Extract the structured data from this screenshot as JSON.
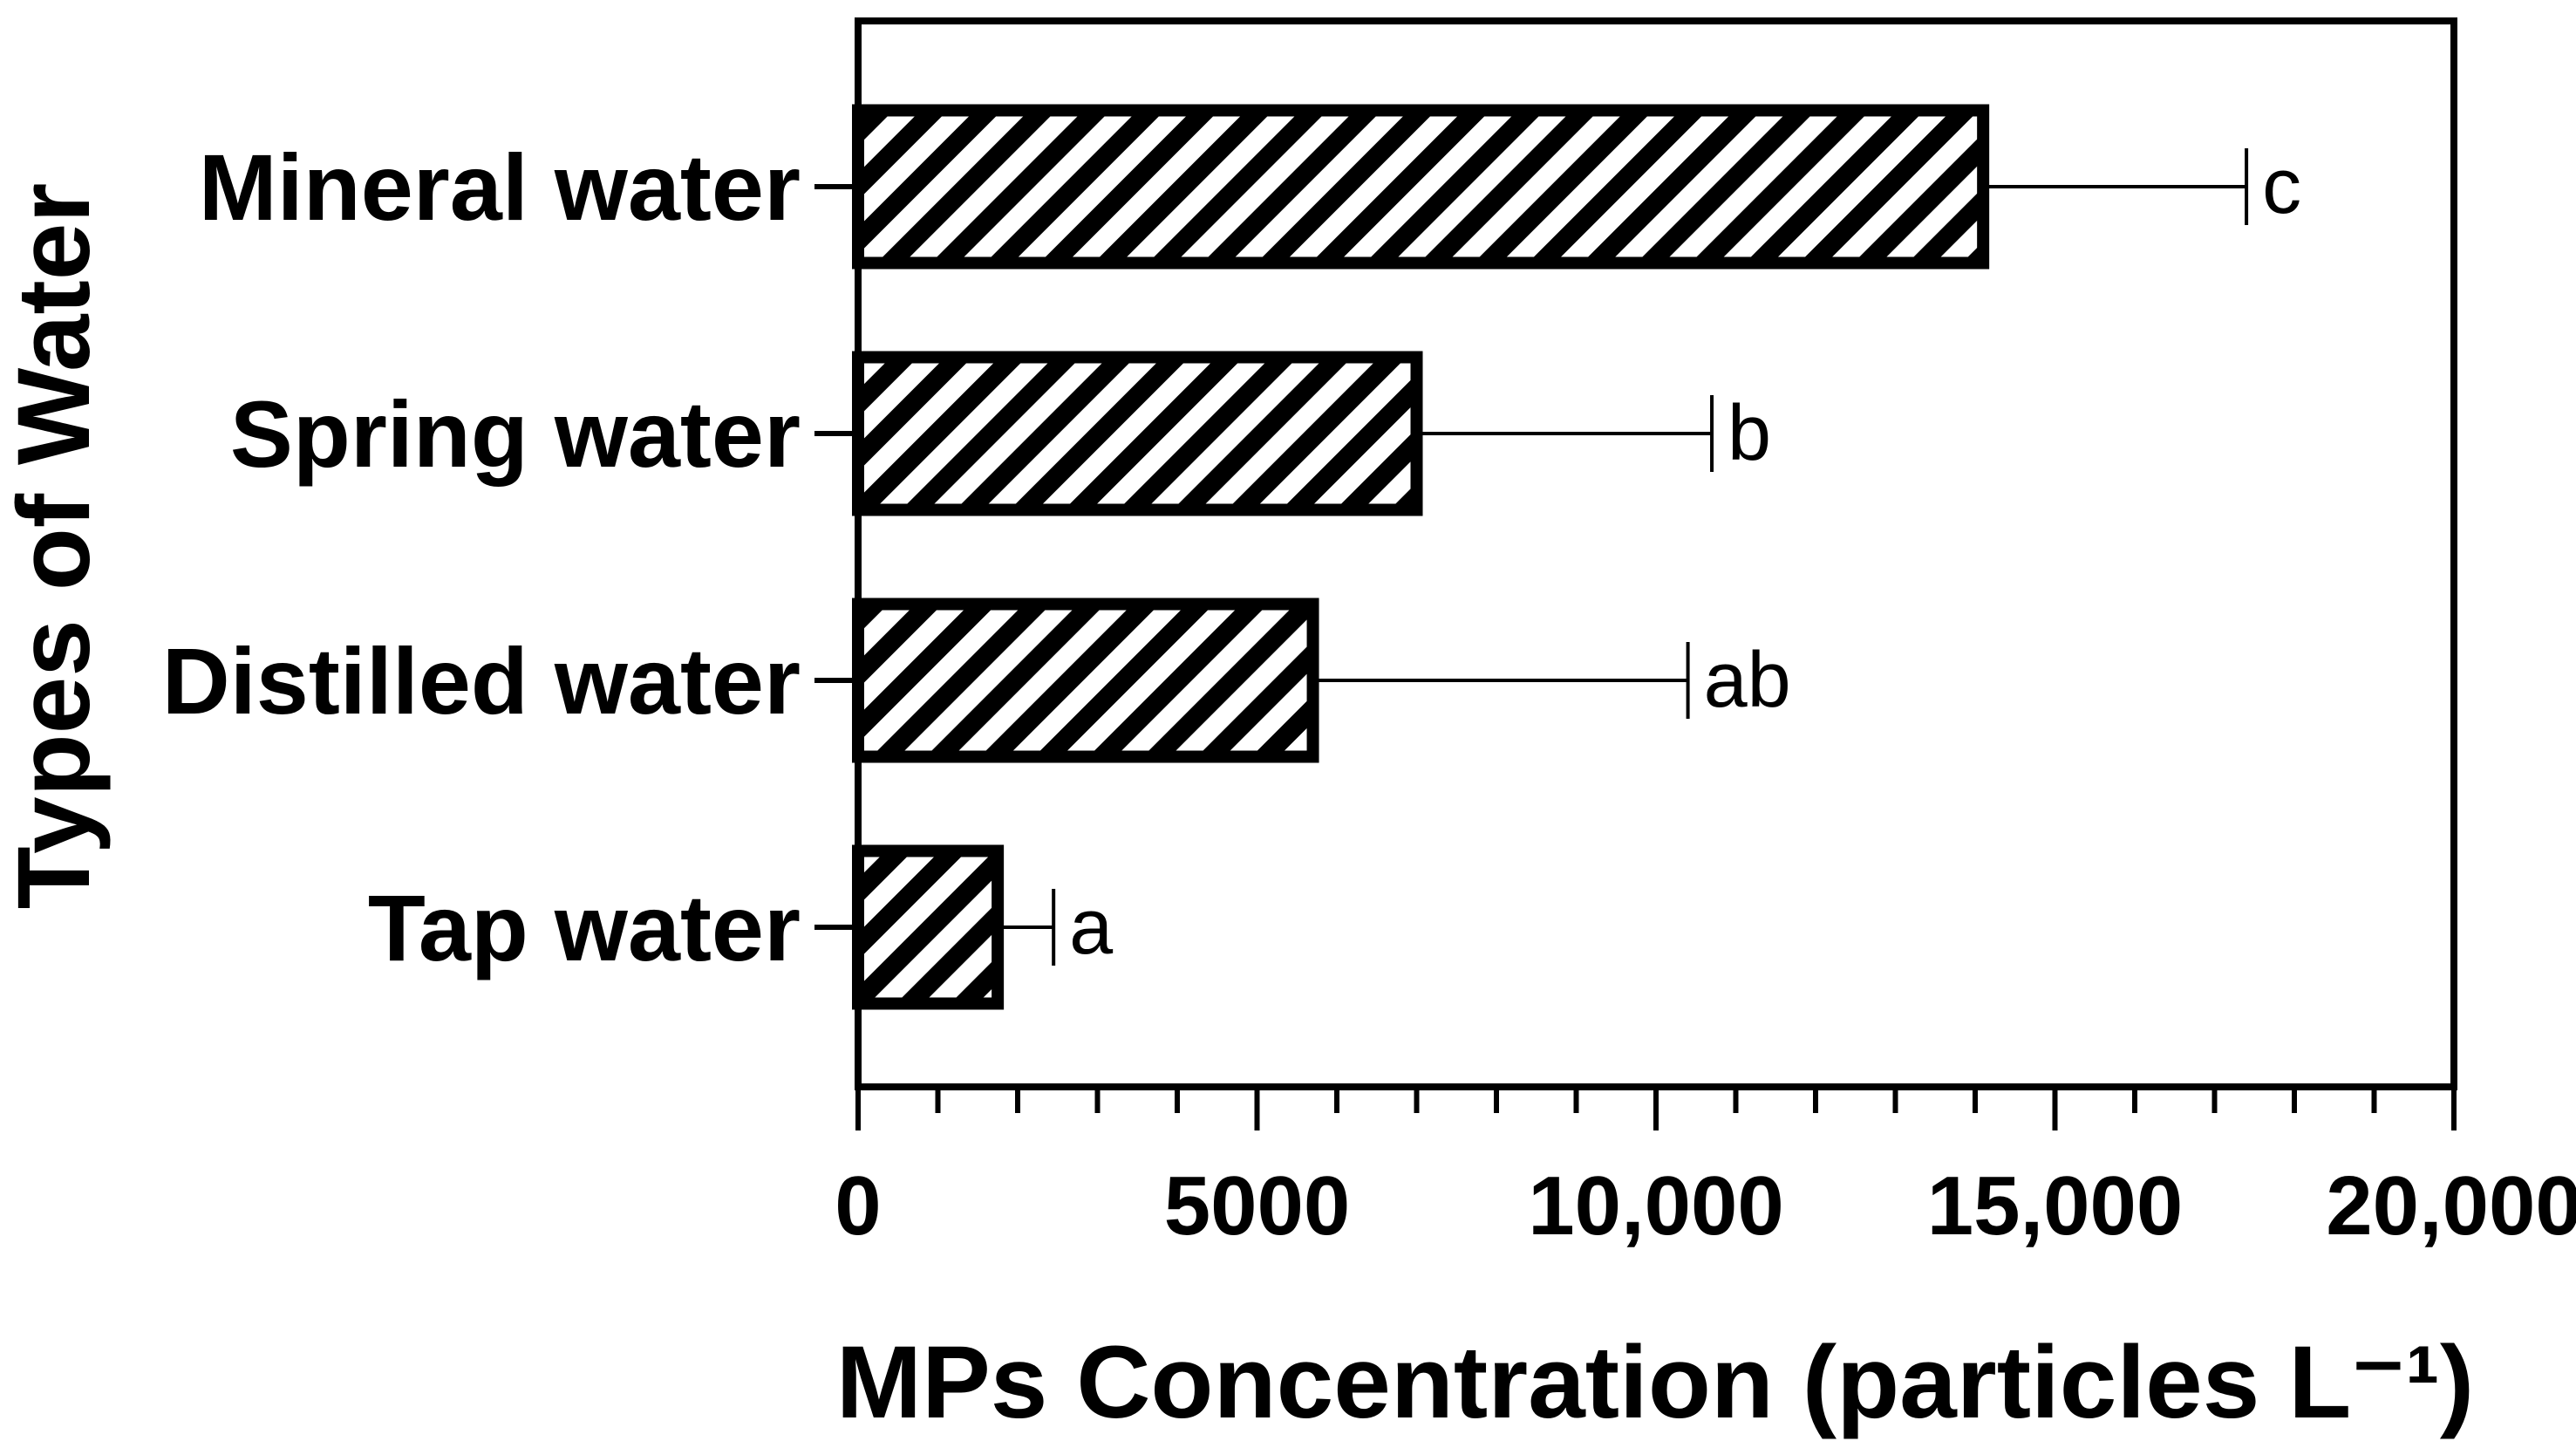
{
  "chart_data": {
    "type": "bar",
    "orientation": "horizontal",
    "title": "",
    "xlabel": "MPs Concentration (particles L⁻¹)",
    "ylabel": "Types of Water",
    "xlim": [
      0,
      20000
    ],
    "x_ticks": [
      0,
      5000,
      10000,
      15000,
      20000
    ],
    "x_tick_labels": [
      "0",
      "5000",
      "10,000",
      "15,000",
      "20,000"
    ],
    "x_minor_tick_step": 1000,
    "grid": false,
    "legend": null,
    "bar_fill": "diagonal-hatch",
    "colors": {
      "bar_stroke": "#000000",
      "hatch": "#000000",
      "background": "#ffffff"
    },
    "categories": [
      "Mineral water",
      "Spring water",
      "Distilled water",
      "Tap water"
    ],
    "values": [
      14100,
      7000,
      5700,
      1750
    ],
    "error_upper": [
      17400,
      10700,
      10400,
      2450
    ],
    "significance_labels": [
      "c",
      "b",
      "ab",
      "a"
    ]
  }
}
